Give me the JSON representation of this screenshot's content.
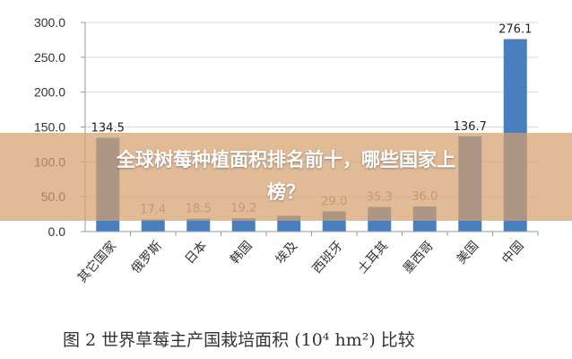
{
  "chart_data": {
    "type": "bar",
    "categories": [
      "其它国家",
      "俄罗斯",
      "日本",
      "韩国",
      "埃及",
      "西班牙",
      "土耳其",
      "墨西哥",
      "美国",
      "中国"
    ],
    "values": [
      134.5,
      17.4,
      18.5,
      19.2,
      22.7,
      29.0,
      35.3,
      36.0,
      136.7,
      276.1
    ],
    "value_labels": [
      "134.5",
      "17.4",
      "18.5",
      "19.2",
      "",
      "29.0",
      "35.3",
      "36.0",
      "136.7",
      "276.1"
    ],
    "yticks": [
      "0.0",
      "50.0",
      "100.0",
      "150.0",
      "200.0",
      "250.0",
      "300.0"
    ],
    "ylim": [
      0,
      300
    ],
    "grid": "horizontal",
    "colors": {
      "bar": "#4a7fbf",
      "grid": "#d9d9d9",
      "axis": "#999999"
    },
    "caption": "图 2   世界草莓主产国栽培面积 (10⁴ hm²) 比较"
  },
  "overlay": {
    "title_line1": "全球树莓种植面积排名前十，哪些国家上",
    "title_line2": "榜？",
    "background": "#d6a06e"
  }
}
